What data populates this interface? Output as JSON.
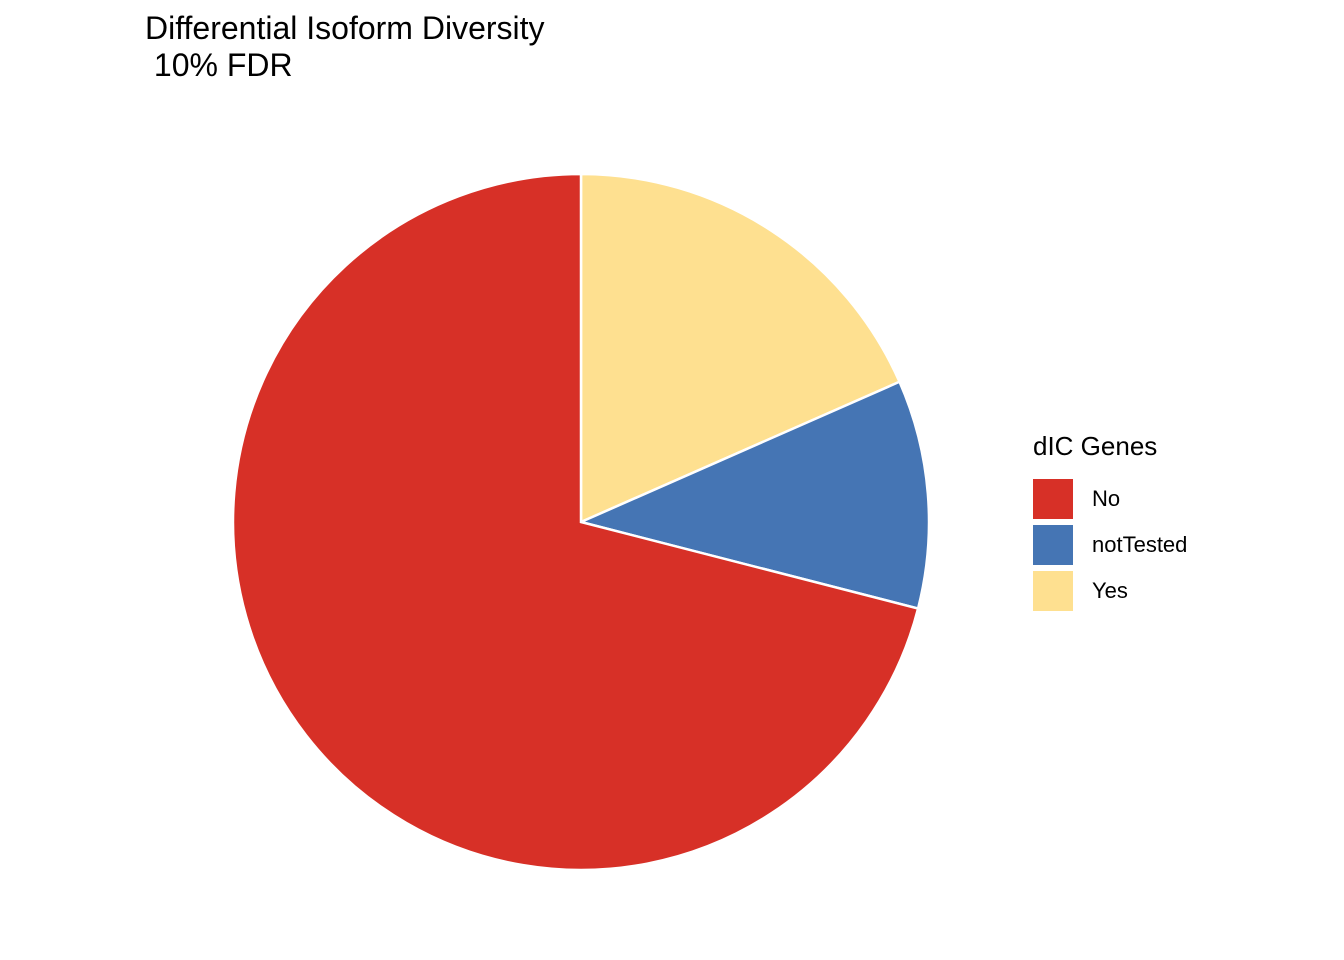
{
  "chart_data": {
    "type": "pie",
    "title": "Differential Isoform Diversity",
    "subtitle": " 10% FDR",
    "legend_title": "dIC Genes",
    "legend_position": "right",
    "slices": [
      {
        "label": "Yes",
        "value": 18.4,
        "color": "#FEE090"
      },
      {
        "label": "notTested",
        "value": 10.6,
        "color": "#4575B4"
      },
      {
        "label": "No",
        "value": 71.0,
        "color": "#D73027"
      }
    ],
    "legend_order": [
      "No",
      "notTested",
      "Yes"
    ]
  }
}
